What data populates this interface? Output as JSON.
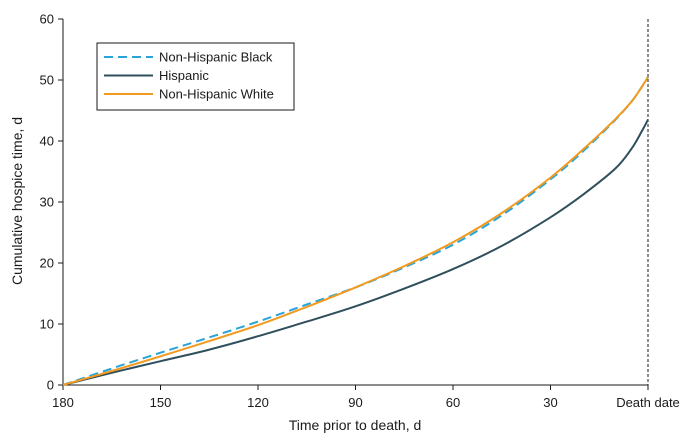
{
  "chart_data": {
    "type": "line",
    "xlabel": "Time prior to death, d",
    "ylabel": "Cumulative hospice time, d",
    "xlim": [
      180,
      0
    ],
    "ylim": [
      0,
      60
    ],
    "x_ticks": [
      {
        "value": 180,
        "label": "180"
      },
      {
        "value": 150,
        "label": "150"
      },
      {
        "value": 120,
        "label": "120"
      },
      {
        "value": 90,
        "label": "90"
      },
      {
        "value": 60,
        "label": "60"
      },
      {
        "value": 30,
        "label": "30"
      },
      {
        "value": 0,
        "label": "Death date"
      }
    ],
    "y_ticks": [
      0,
      10,
      20,
      30,
      40,
      50,
      60
    ],
    "grid": false,
    "legend_position": "top-left",
    "death_date_marker": {
      "x": 0,
      "style": "dashed"
    },
    "series": [
      {
        "name": "Non-Hispanic Black",
        "color": "#2aa4d8",
        "dash": "dashed",
        "x": [
          180,
          165,
          150,
          135,
          120,
          105,
          90,
          75,
          60,
          45,
          30,
          20,
          10,
          5,
          2,
          0
        ],
        "y": [
          0,
          2.7,
          5.3,
          7.8,
          10.4,
          13.2,
          16.0,
          19.3,
          23.0,
          27.8,
          33.7,
          38.3,
          43.5,
          46.5,
          48.8,
          50.5
        ]
      },
      {
        "name": "Hispanic",
        "color": "#2f4f5c",
        "dash": "solid",
        "x": [
          180,
          165,
          150,
          135,
          120,
          105,
          90,
          75,
          60,
          45,
          30,
          20,
          10,
          5,
          2,
          0
        ],
        "y": [
          0,
          2.0,
          3.9,
          5.8,
          8.0,
          10.4,
          12.9,
          15.8,
          19.0,
          22.8,
          27.5,
          31.2,
          35.5,
          38.8,
          41.5,
          43.5
        ]
      },
      {
        "name": "Non-Hispanic White",
        "color": "#f29a1f",
        "dash": "solid",
        "x": [
          180,
          165,
          150,
          135,
          120,
          105,
          90,
          75,
          60,
          45,
          30,
          20,
          10,
          5,
          2,
          0
        ],
        "y": [
          0,
          2.3,
          4.7,
          7.2,
          9.8,
          12.8,
          16.0,
          19.5,
          23.4,
          28.2,
          34.0,
          38.6,
          43.6,
          46.5,
          48.8,
          50.5
        ]
      }
    ]
  }
}
